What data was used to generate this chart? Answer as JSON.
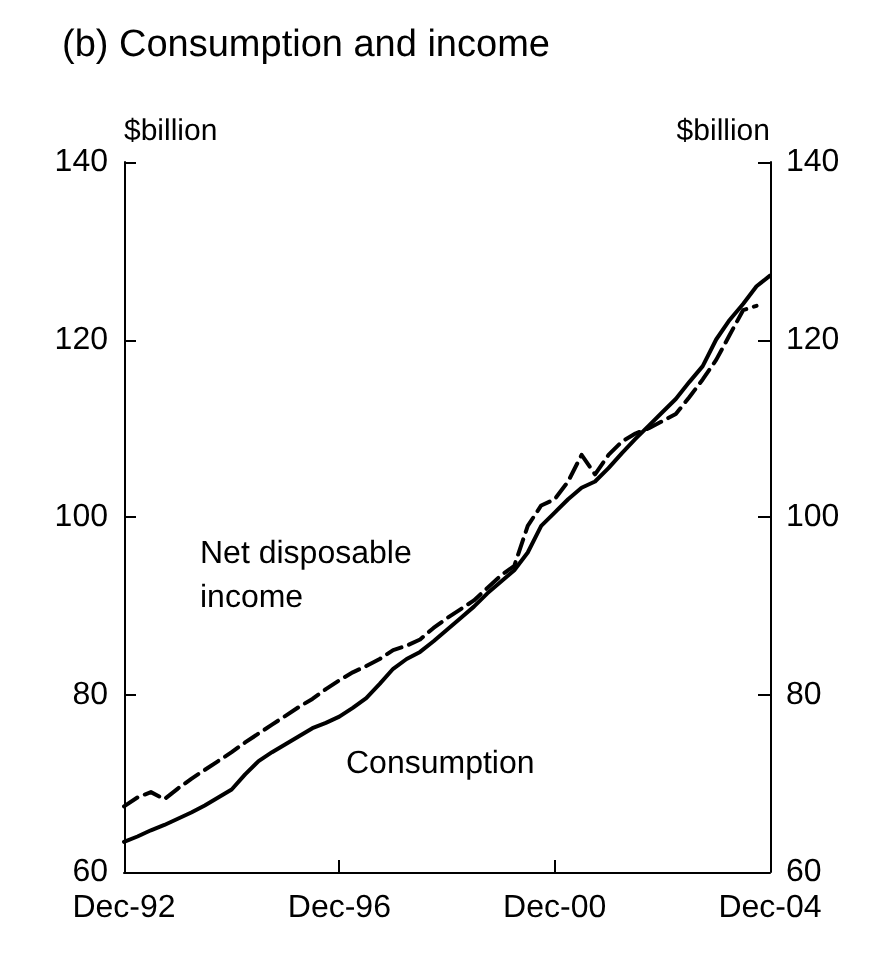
{
  "chart_data": {
    "type": "line",
    "title": "(b) Consumption and income",
    "ylabel": "$billion",
    "y2label": "$billion",
    "categories": [
      "Dec-92",
      null,
      null,
      null,
      null,
      null,
      null,
      null,
      null,
      null,
      null,
      null,
      null,
      null,
      null,
      null,
      "Dec-96",
      null,
      null,
      null,
      null,
      null,
      null,
      null,
      null,
      null,
      null,
      null,
      null,
      null,
      null,
      null,
      "Dec-00",
      null,
      null,
      null,
      null,
      null,
      null,
      null,
      null,
      null,
      null,
      null,
      null,
      null,
      null,
      null,
      "Dec-04"
    ],
    "series": [
      {
        "name": "Net disposable income",
        "color": "#000000",
        "line_style": "dashed",
        "values": [
          67.4,
          68.4,
          69.0,
          68.2,
          69.4,
          70.5,
          71.5,
          72.5,
          73.5,
          74.6,
          75.6,
          76.6,
          77.6,
          78.6,
          79.5,
          80.6,
          81.6,
          82.5,
          83.2,
          84.0,
          85.0,
          85.5,
          86.2,
          87.5,
          88.6,
          89.6,
          90.6,
          92.0,
          93.4,
          94.5,
          99.0,
          101.3,
          102.0,
          104.0,
          107.0,
          104.8,
          107.0,
          108.5,
          109.4,
          110.0,
          110.8,
          111.6,
          113.5,
          115.5,
          117.7,
          120.5,
          123.3,
          123.8,
          null
        ]
      },
      {
        "name": "Consumption",
        "color": "#000000",
        "line_style": "solid",
        "values": [
          63.4,
          64.0,
          64.7,
          65.3,
          66.0,
          66.7,
          67.5,
          68.4,
          69.3,
          71.0,
          72.5,
          73.5,
          74.4,
          75.3,
          76.2,
          76.8,
          77.5,
          78.5,
          79.6,
          81.2,
          82.9,
          84.0,
          84.8,
          86.0,
          87.3,
          88.6,
          89.9,
          91.4,
          92.7,
          94.0,
          96.0,
          99.0,
          100.5,
          102.0,
          103.3,
          104.0,
          105.5,
          107.2,
          108.8,
          110.3,
          111.8,
          113.3,
          115.2,
          117.0,
          120.0,
          122.2,
          124.0,
          126.0,
          127.2
        ]
      }
    ],
    "ylim": [
      60,
      140
    ],
    "yticks": [
      60,
      80,
      100,
      120,
      140
    ],
    "y2lim": [
      60,
      140
    ],
    "y2ticks": [
      60,
      80,
      100,
      120,
      140
    ],
    "grid": false,
    "legend": false,
    "marker": "none"
  }
}
